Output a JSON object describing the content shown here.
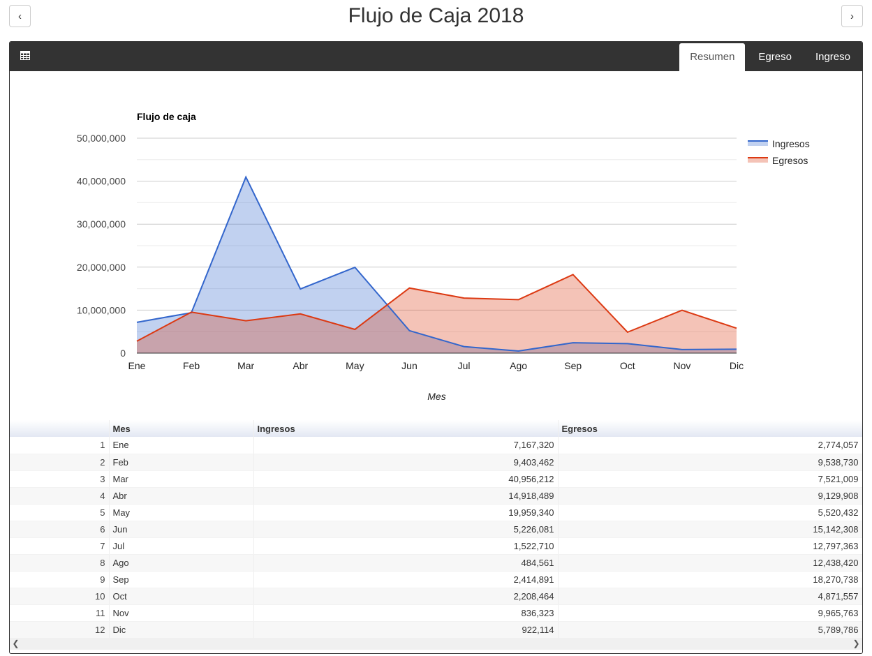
{
  "page": {
    "title": "Flujo de Caja 2018",
    "prev_label": "‹",
    "next_label": "›"
  },
  "header": {
    "icon": "table-icon",
    "tabs": [
      {
        "label": "Resumen",
        "active": true
      },
      {
        "label": "Egreso",
        "active": false
      },
      {
        "label": "Ingreso",
        "active": false
      }
    ]
  },
  "colors": {
    "ingresos": "#3366cc",
    "egresos": "#dc3912"
  },
  "chart_data": {
    "type": "area",
    "title": "Flujo de caja",
    "xlabel": "Mes",
    "ylabel": "",
    "categories": [
      "Ene",
      "Feb",
      "Mar",
      "Abr",
      "May",
      "Jun",
      "Jul",
      "Ago",
      "Sep",
      "Oct",
      "Nov",
      "Dic"
    ],
    "ylim": [
      0,
      50000000
    ],
    "yticks": [
      "0",
      "10,000,000",
      "20,000,000",
      "30,000,000",
      "40,000,000",
      "50,000,000"
    ],
    "grid": true,
    "legend_position": "right",
    "series": [
      {
        "name": "Ingresos",
        "color": "#3366cc",
        "values": [
          7167320,
          9403462,
          40956212,
          14918489,
          19959340,
          5226081,
          1522710,
          484561,
          2414891,
          2208464,
          836323,
          922114
        ]
      },
      {
        "name": "Egresos",
        "color": "#dc3912",
        "values": [
          2774057,
          9538730,
          7521009,
          9129908,
          5520432,
          15142308,
          12797363,
          12438420,
          18270738,
          4871557,
          9965763,
          5789786
        ]
      }
    ]
  },
  "table": {
    "columns": [
      "",
      "Mes",
      "Ingresos",
      "Egresos"
    ],
    "rows": [
      [
        "1",
        "Ene",
        "7,167,320",
        "2,774,057"
      ],
      [
        "2",
        "Feb",
        "9,403,462",
        "9,538,730"
      ],
      [
        "3",
        "Mar",
        "40,956,212",
        "7,521,009"
      ],
      [
        "4",
        "Abr",
        "14,918,489",
        "9,129,908"
      ],
      [
        "5",
        "May",
        "19,959,340",
        "5,520,432"
      ],
      [
        "6",
        "Jun",
        "5,226,081",
        "15,142,308"
      ],
      [
        "7",
        "Jul",
        "1,522,710",
        "12,797,363"
      ],
      [
        "8",
        "Ago",
        "484,561",
        "12,438,420"
      ],
      [
        "9",
        "Sep",
        "2,414,891",
        "18,270,738"
      ],
      [
        "10",
        "Oct",
        "2,208,464",
        "4,871,557"
      ],
      [
        "11",
        "Nov",
        "836,323",
        "9,965,763"
      ],
      [
        "12",
        "Dic",
        "922,114",
        "5,789,786"
      ]
    ]
  }
}
